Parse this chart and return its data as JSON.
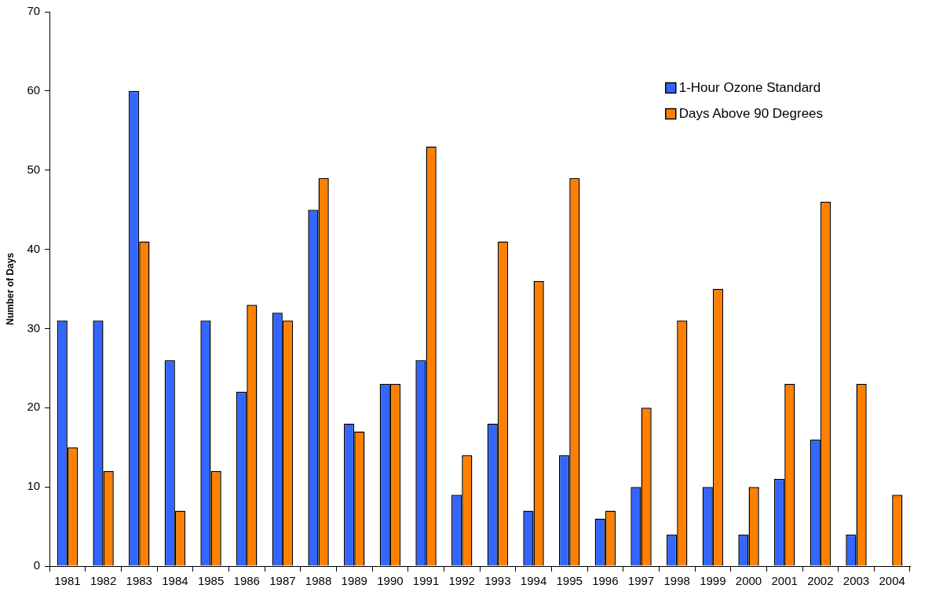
{
  "chart_data": {
    "type": "bar",
    "ylabel": "Number of Days",
    "categories": [
      "1981",
      "1982",
      "1983",
      "1984",
      "1985",
      "1986",
      "1987",
      "1988",
      "1989",
      "1990",
      "1991",
      "1992",
      "1993",
      "1994",
      "1995",
      "1996",
      "1997",
      "1998",
      "1999",
      "2000",
      "2001",
      "2002",
      "2003",
      "2004"
    ],
    "series": [
      {
        "name": "1-Hour Ozone Standard",
        "color": "#3366ff",
        "values": [
          31,
          31,
          60,
          26,
          31,
          22,
          32,
          45,
          18,
          23,
          26,
          9,
          18,
          7,
          14,
          6,
          10,
          4,
          10,
          4,
          11,
          16,
          4,
          null
        ]
      },
      {
        "name": "Days Above 90 Degrees",
        "color": "#ff8000",
        "values": [
          15,
          12,
          41,
          7,
          12,
          33,
          31,
          49,
          17,
          23,
          53,
          14,
          41,
          36,
          49,
          7,
          20,
          31,
          35,
          10,
          23,
          46,
          23,
          9
        ]
      }
    ],
    "ylim": [
      0,
      70
    ],
    "yticks": [
      0,
      10,
      20,
      30,
      40,
      50,
      60,
      70
    ],
    "grid": false,
    "legend": "top right"
  }
}
